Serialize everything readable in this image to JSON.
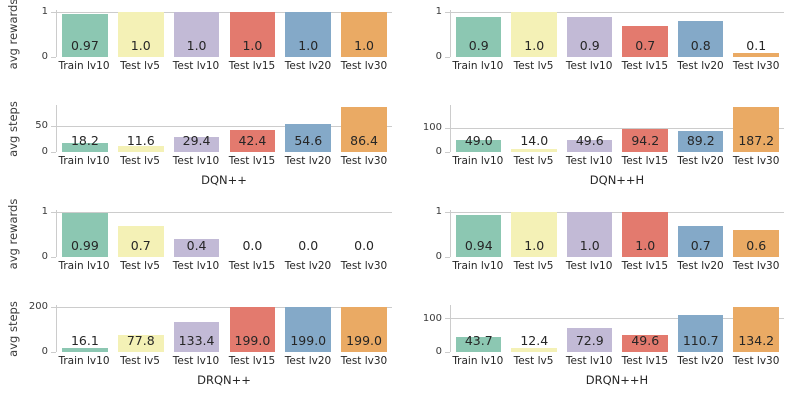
{
  "palette": {
    "bars": [
      "#8cc7b2",
      "#f4f1b6",
      "#c2bad6",
      "#e37a6e",
      "#84a9c8",
      "#eaaa64"
    ],
    "grid": "#cccccc",
    "axis_text": "#3a3a3a",
    "value_text": "#262626"
  },
  "chart_data": [
    {
      "type": "bar",
      "panel": "DQN++ avg rewards",
      "categories": [
        "Train lv10",
        "Test lv5",
        "Test lv10",
        "Test lv15",
        "Test lv20",
        "Test lv30"
      ],
      "values": [
        0.97,
        1.0,
        1.0,
        1.0,
        1.0,
        1.0
      ],
      "value_labels": [
        "0.97",
        "1.0",
        "1.0",
        "1.0",
        "1.0",
        "1.0"
      ],
      "ylabel": "avg rewards",
      "xlabel": "",
      "yticks": [
        0,
        1
      ],
      "ylim": [
        0,
        1.05
      ],
      "grid": "horizontal",
      "legend": "none"
    },
    {
      "type": "bar",
      "panel": "DQN++H avg rewards",
      "categories": [
        "Train lv10",
        "Test lv5",
        "Test lv10",
        "Test lv15",
        "Test lv20",
        "Test lv30"
      ],
      "values": [
        0.9,
        1.0,
        0.9,
        0.7,
        0.8,
        0.1
      ],
      "value_labels": [
        "0.9",
        "1.0",
        "0.9",
        "0.7",
        "0.8",
        "0.1"
      ],
      "ylabel": "",
      "xlabel": "",
      "yticks": [
        0,
        1
      ],
      "ylim": [
        0,
        1.05
      ],
      "grid": "horizontal",
      "legend": "none"
    },
    {
      "type": "bar",
      "panel": "DQN++ avg steps",
      "categories": [
        "Train lv10",
        "Test lv5",
        "Test lv10",
        "Test lv15",
        "Test lv20",
        "Test lv30"
      ],
      "values": [
        18.2,
        11.6,
        29.4,
        42.4,
        54.6,
        86.4
      ],
      "value_labels": [
        "18.2",
        "11.6",
        "29.4",
        "42.4",
        "54.6",
        "86.4"
      ],
      "ylabel": "avg steps",
      "xlabel": "DQN++",
      "yticks": [
        0,
        50
      ],
      "ylim": [
        0,
        90.7
      ],
      "grid": "horizontal",
      "legend": "none"
    },
    {
      "type": "bar",
      "panel": "DQN++H avg steps",
      "categories": [
        "Train lv10",
        "Test lv5",
        "Test lv10",
        "Test lv15",
        "Test lv20",
        "Test lv30"
      ],
      "values": [
        49.0,
        14.0,
        49.6,
        94.2,
        89.2,
        187.2
      ],
      "value_labels": [
        "49.0",
        "14.0",
        "49.6",
        "94.2",
        "89.2",
        "187.2"
      ],
      "ylabel": "",
      "xlabel": "DQN++H",
      "yticks": [
        0,
        100
      ],
      "ylim": [
        0,
        196.6
      ],
      "grid": "horizontal",
      "legend": "none"
    },
    {
      "type": "bar",
      "panel": "DRQN++ avg rewards",
      "categories": [
        "Train lv10",
        "Test lv5",
        "Test lv10",
        "Test lv15",
        "Test lv20",
        "Test lv30"
      ],
      "values": [
        0.99,
        0.7,
        0.4,
        0.0,
        0.0,
        0.0
      ],
      "value_labels": [
        "0.99",
        "0.7",
        "0.4",
        "0.0",
        "0.0",
        "0.0"
      ],
      "ylabel": "avg rewards",
      "xlabel": "",
      "yticks": [
        0,
        1
      ],
      "ylim": [
        0,
        1.05
      ],
      "grid": "horizontal",
      "legend": "none"
    },
    {
      "type": "bar",
      "panel": "DRQN++H avg rewards",
      "categories": [
        "Train lv10",
        "Test lv5",
        "Test lv10",
        "Test lv15",
        "Test lv20",
        "Test lv30"
      ],
      "values": [
        0.94,
        1.0,
        1.0,
        1.0,
        0.7,
        0.6
      ],
      "value_labels": [
        "0.94",
        "1.0",
        "1.0",
        "1.0",
        "0.7",
        "0.6"
      ],
      "ylabel": "",
      "xlabel": "",
      "yticks": [
        0,
        1
      ],
      "ylim": [
        0,
        1.05
      ],
      "grid": "horizontal",
      "legend": "none"
    },
    {
      "type": "bar",
      "panel": "DRQN++ avg steps",
      "categories": [
        "Train lv10",
        "Test lv5",
        "Test lv10",
        "Test lv15",
        "Test lv20",
        "Test lv30"
      ],
      "values": [
        16.1,
        77.8,
        133.4,
        199.0,
        199.0,
        199.0
      ],
      "value_labels": [
        "16.1",
        "77.8",
        "133.4",
        "199.0",
        "199.0",
        "199.0"
      ],
      "ylabel": "avg steps",
      "xlabel": "DRQN++",
      "yticks": [
        0,
        200
      ],
      "ylim": [
        0,
        209
      ],
      "grid": "horizontal",
      "legend": "none"
    },
    {
      "type": "bar",
      "panel": "DRQN++H avg steps",
      "categories": [
        "Train lv10",
        "Test lv5",
        "Test lv10",
        "Test lv15",
        "Test lv20",
        "Test lv30"
      ],
      "values": [
        43.7,
        12.4,
        72.9,
        49.6,
        110.7,
        134.2
      ],
      "value_labels": [
        "43.7",
        "12.4",
        "72.9",
        "49.6",
        "110.7",
        "134.2"
      ],
      "ylabel": "",
      "xlabel": "DRQN++H",
      "yticks": [
        0,
        100
      ],
      "ylim": [
        0,
        141
      ],
      "grid": "horizontal",
      "legend": "none"
    }
  ]
}
